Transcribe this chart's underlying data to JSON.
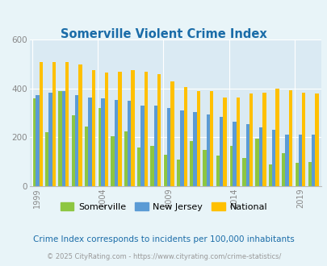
{
  "title": "Somerville Violent Crime Index",
  "years": [
    1999,
    2000,
    2001,
    2002,
    2003,
    2004,
    2005,
    2006,
    2007,
    2008,
    2009,
    2010,
    2011,
    2012,
    2013,
    2014,
    2015,
    2016,
    2017,
    2018,
    2019,
    2020
  ],
  "somerville": [
    360,
    220,
    390,
    290,
    245,
    320,
    205,
    225,
    160,
    165,
    130,
    110,
    185,
    150,
    125,
    165,
    115,
    195,
    90,
    135,
    95,
    100
  ],
  "new_jersey": [
    375,
    385,
    390,
    375,
    365,
    360,
    355,
    350,
    330,
    330,
    320,
    310,
    305,
    295,
    285,
    265,
    255,
    240,
    230,
    210,
    210,
    210
  ],
  "national": [
    510,
    510,
    510,
    500,
    475,
    465,
    470,
    475,
    470,
    460,
    430,
    405,
    390,
    390,
    365,
    365,
    380,
    385,
    400,
    395,
    385,
    380
  ],
  "somerville_color": "#8dc641",
  "new_jersey_color": "#5b9bd5",
  "national_color": "#ffc000",
  "bg_color": "#e8f4f8",
  "plot_bg_color": "#daeaf3",
  "title_color": "#1a6ca8",
  "grid_color": "#ffffff",
  "ylabel_max": 600,
  "yticks": [
    0,
    200,
    400,
    600
  ],
  "tick_years": [
    1999,
    2004,
    2009,
    2014,
    2019
  ],
  "subtitle": "Crime Index corresponds to incidents per 100,000 inhabitants",
  "footer": "© 2025 CityRating.com - https://www.cityrating.com/crime-statistics/",
  "subtitle_color": "#1a6ca8",
  "footer_color": "#999999"
}
